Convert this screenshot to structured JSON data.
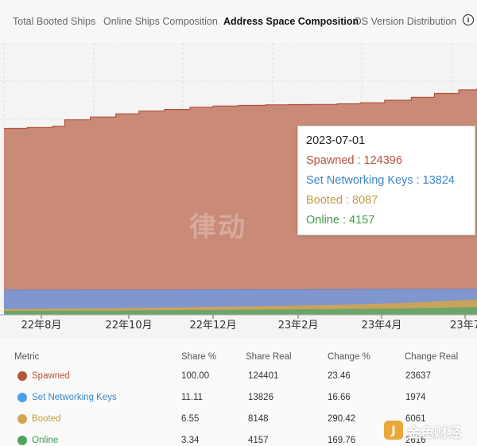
{
  "tabs": [
    {
      "label": "Total Booted Ships",
      "active": false
    },
    {
      "label": "Online Ships Composition",
      "active": false
    },
    {
      "label": "Address Space Composition",
      "active": true
    },
    {
      "label": "OS Version Distribution",
      "active": false
    }
  ],
  "info_icon": "info-icon",
  "colors": {
    "spawned": "#c98a78",
    "spawned_line": "#b5523a",
    "set_networking_keys": "#7f96cf",
    "booted": "#caa35a",
    "online": "#6aa56a",
    "tooltip_spawned": "#b5523a",
    "tooltip_keys": "#3a86c8",
    "tooltip_booted": "#c19b3f",
    "tooltip_online": "#3f9a4a"
  },
  "chart_data": {
    "type": "area",
    "x_ticks": [
      "22年8月",
      "22年10月",
      "22年12月",
      "23年2月",
      "23年4月",
      "23年7"
    ],
    "series": [
      {
        "name": "Spawned",
        "x": [
          "2022-07-01",
          "2022-07-20",
          "2022-08-10",
          "2022-08-20",
          "2022-09-10",
          "2022-10-01",
          "2022-10-20",
          "2022-11-10",
          "2022-12-01",
          "2022-12-20",
          "2023-01-10",
          "2023-02-01",
          "2023-02-20",
          "2023-03-10",
          "2023-04-01",
          "2023-04-20",
          "2023-05-10",
          "2023-06-01",
          "2023-06-20",
          "2023-07-10",
          "2023-07-25"
        ],
        "values": [
          100200,
          100700,
          101300,
          104800,
          106300,
          108000,
          109500,
          110400,
          111500,
          112200,
          112600,
          112900,
          113000,
          113100,
          113400,
          113900,
          115300,
          116900,
          119000,
          120900,
          121800
        ]
      },
      {
        "name": "Set Networking Keys",
        "x": [
          "2022-07-01",
          "2022-10-01",
          "2023-01-01",
          "2023-04-01",
          "2023-07-25"
        ],
        "values": [
          13300,
          13400,
          13500,
          13650,
          13830
        ]
      },
      {
        "name": "Booted",
        "x": [
          "2022-07-01",
          "2022-10-01",
          "2023-01-01",
          "2023-04-01",
          "2023-06-01",
          "2023-07-25"
        ],
        "values": [
          3100,
          3600,
          4400,
          5300,
          6600,
          8150
        ]
      },
      {
        "name": "Online",
        "x": [
          "2022-07-01",
          "2022-10-01",
          "2023-01-01",
          "2023-04-01",
          "2023-06-01",
          "2023-07-25"
        ],
        "values": [
          2100,
          2300,
          2700,
          3100,
          3500,
          4157
        ]
      }
    ],
    "tooltip": {
      "date": "2023-07-01",
      "entries": [
        {
          "label": "Spawned",
          "value": "124396"
        },
        {
          "label": "Set Networking Keys",
          "value": "13824"
        },
        {
          "label": "Booted",
          "value": "8087"
        },
        {
          "label": "Online",
          "value": "4157"
        }
      ]
    }
  },
  "watermark": "律动",
  "table": {
    "headers": {
      "metric": "Metric",
      "share_pct": "Share  %",
      "share_real": "Share  Real",
      "change_pct": "Change  %",
      "change_real": "Change  Real"
    },
    "rows": [
      {
        "metric": "Spawned",
        "share_pct": "100.00",
        "share_real": "124401",
        "change_pct": "23.46",
        "change_real": "23637"
      },
      {
        "metric": "Set Networking Keys",
        "share_pct": "11.11",
        "share_real": "13826",
        "change_pct": "16.66",
        "change_real": "1974"
      },
      {
        "metric": "Booted",
        "share_pct": "6.55",
        "share_real": "8148",
        "change_pct": "290.42",
        "change_real": "6061"
      },
      {
        "metric": "Online",
        "share_pct": "3.34",
        "share_real": "4157",
        "change_pct": "169.76",
        "change_real": "2616"
      }
    ]
  },
  "corner_logo": "金色财经"
}
